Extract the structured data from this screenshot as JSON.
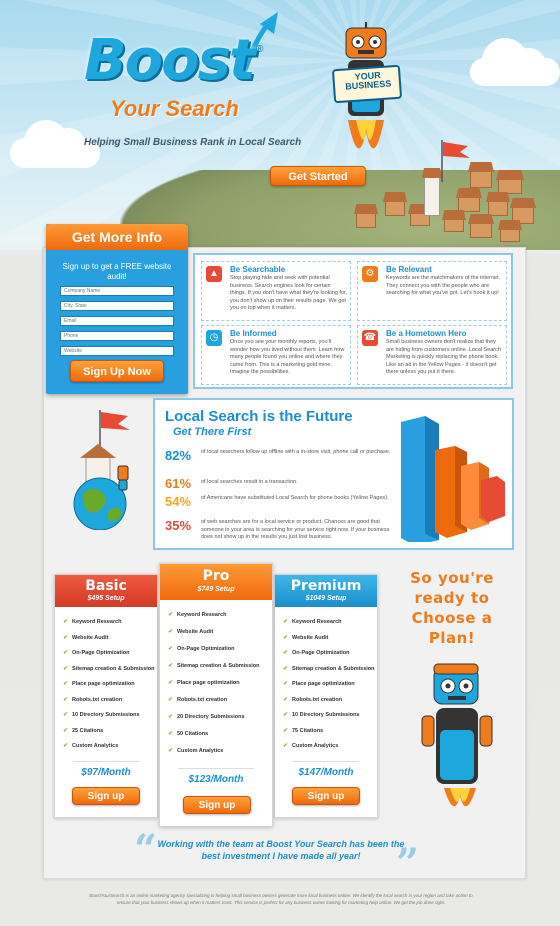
{
  "brand": {
    "name": "Boost",
    "registered": "®",
    "subtitle": "Your Search",
    "tagline": "Helping Small Business Rank in Local Search",
    "cta": "Get Started",
    "sign": "YOUR BUSINESS",
    "colors": {
      "blue": "#1ea7dc",
      "orange": "#f07b1c",
      "green": "#6aaa2a",
      "red": "#e74a35"
    }
  },
  "info": {
    "title": "Get More Info",
    "subtitle": "Sign up to get a FREE website audit!",
    "fields": [
      "Company Name",
      "City, State",
      "Email",
      "Phone",
      "Website"
    ],
    "submit": "Sign Up Now"
  },
  "features": [
    {
      "icon": "rocket-icon",
      "color": "#e74a35",
      "title": "Be Searchable",
      "text": "Stop playing hide and seek with potential business. Search engines look for certain things. If you don't have what they're looking for, you don't show up on their results page. We get you on top when it matters."
    },
    {
      "icon": "gear-icon",
      "color": "#f07b1c",
      "title": "Be Relevant",
      "text": "Keywords are the matchmakers of the internet. They connect you with the people who are searching for what you've got. Let's hook it up!"
    },
    {
      "icon": "clock-icon",
      "color": "#1ea7dc",
      "title": "Be Informed",
      "text": "Once you see your monthly reports, you'll wonder how you lived without them. Learn how many people found you online and where they came from. This is a marketing gold mine. Imagine the possibilities."
    },
    {
      "icon": "phone-icon",
      "color": "#e74a35",
      "title": "Be a Hometown Hero",
      "text": "Small business owners don't realize that they are hiding from customers online. Local Search Marketing is quickly replacing the phone book. Like an ad in the Yellow Pages - it doesn't get there unless you put it there."
    }
  ],
  "stats": {
    "title": "Local Search is the Future",
    "subtitle": "Get There First",
    "items": [
      {
        "value": "82%",
        "color": "#1b8fd2",
        "text": "of local searchers follow up offline with a in-store visit, phone call or purchase."
      },
      {
        "value": "61%",
        "color": "#f07b1c",
        "text": "of local searches result in a transaction."
      },
      {
        "value": "54%",
        "color": "#f5a623",
        "text": "of Americans have substituted Local Search for phone books (Yellow Pages)."
      },
      {
        "value": "35%",
        "color": "#e74a35",
        "text": "of web searches are for a local service or product. Chances are good that someone in your area is searching for your service right now. If your business does not show up in the results you just lost business."
      }
    ]
  },
  "plans": [
    {
      "name": "Basic",
      "setup": "$495 Setup",
      "color": "#e74a35",
      "features": [
        "Keyword Research",
        "Website Audit",
        "On-Page Optimization",
        "Sitemap creation & Submission",
        "Place page optimization",
        "Robots.txt creation",
        "10 Directory Submissions",
        "25 Citations",
        "Custom Analytics"
      ],
      "price": "$97/Month",
      "button": "Sign up"
    },
    {
      "name": "Pro",
      "setup": "$749 Setup",
      "color": "#f07b1c",
      "features": [
        "Keyword Research",
        "Website Audit",
        "On-Page Optimization",
        "Sitemap creation & Submission",
        "Place page optimization",
        "Robots.txt creation",
        "20 Directory Submissions",
        "50 Citations",
        "Custom Analytics"
      ],
      "price": "$123/Month",
      "button": "Sign up"
    },
    {
      "name": "Premium",
      "setup": "$1049 Setup",
      "color": "#1ea7dc",
      "features": [
        "Keyword Research",
        "Website Audit",
        "On-Page Optimization",
        "Sitemap creation & Submission",
        "Place page optimization",
        "Robots.txt creation",
        "10 Directory Submissions",
        "75 Citations",
        "Custom Analytics"
      ],
      "price": "$147/Month",
      "button": "Sign up"
    }
  ],
  "choose": "So you're ready to Choose a Plan!",
  "quote": "Working with the team at Boost Your Search has been the best investment I have made all year!",
  "footer": "BoostYourSearch is an online marketing agency specializing in helping small business owners generate more local business online. We identify the local search in your region and take action to ensure that your business shows up when it matters most. This service is perfect for any business owner looking for marketing help online. We get the job done right."
}
